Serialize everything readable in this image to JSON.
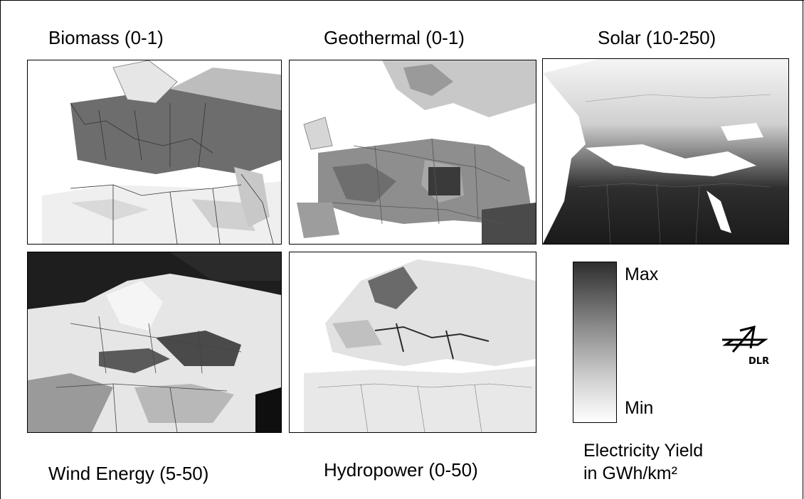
{
  "panels": [
    {
      "title": "Biomass (0-1)"
    },
    {
      "title": "Geothermal (0-1)"
    },
    {
      "title": "Solar (10-250)"
    },
    {
      "title": "Wind Energy (5-50)"
    },
    {
      "title": "Hydropower (0-50)"
    }
  ],
  "legend": {
    "max_label": "Max",
    "min_label": "Min",
    "caption_line1": "Electricity Yield",
    "caption_line2": "in GWh/km²"
  },
  "logo": {
    "text": "DLR",
    "icon": "dlr-logo-icon"
  },
  "colors": {
    "max": "#2e2e2e",
    "min": "#ffffff"
  }
}
